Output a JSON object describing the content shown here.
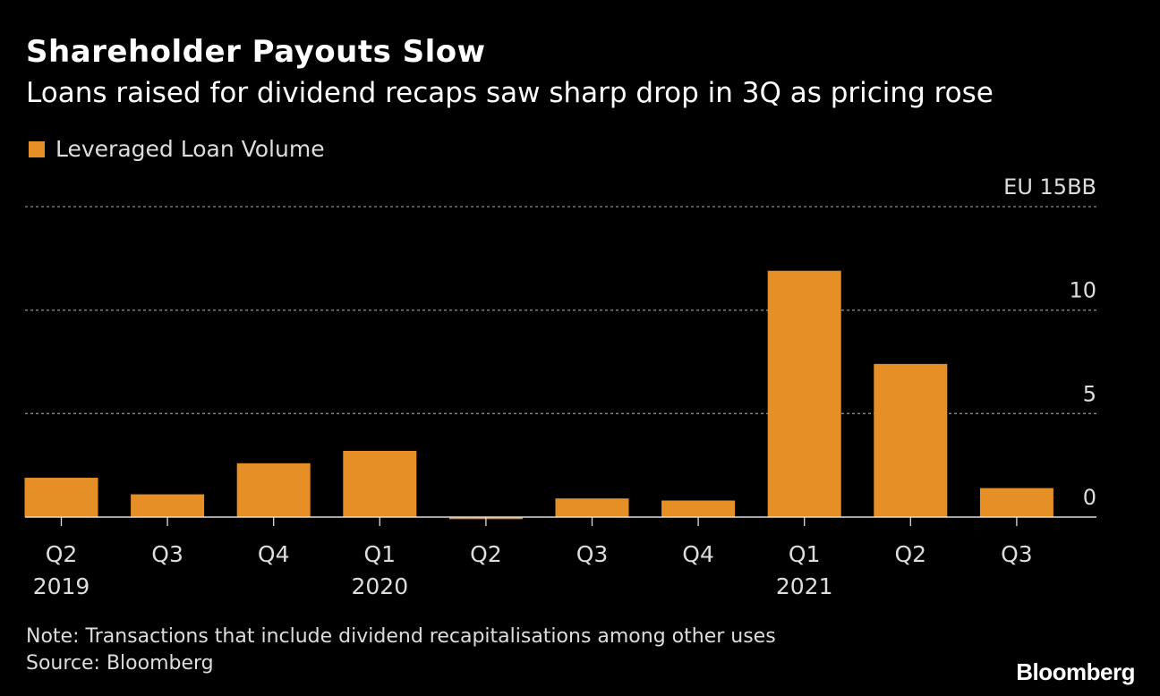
{
  "title": "Shareholder Payouts Slow",
  "subtitle": "Loans raised for dividend recaps saw sharp drop in 3Q as pricing rose",
  "note": "Note: Transactions that include dividend recapitalisations among other uses",
  "source": "Source: Bloomberg",
  "brand": "Bloomberg",
  "colors": {
    "bar": "#e58f26",
    "background": "#000000",
    "grid": "#888888"
  },
  "chart_data": {
    "type": "bar",
    "categories": [
      "Q2",
      "Q3",
      "Q4",
      "Q1",
      "Q2",
      "Q3",
      "Q4",
      "Q1",
      "Q2",
      "Q3"
    ],
    "year_labels": [
      "2019",
      "",
      "",
      "2020",
      "",
      "",
      "",
      "2021",
      "",
      ""
    ],
    "series": [
      {
        "name": "Leveraged Loan Volume",
        "values": [
          1.9,
          1.1,
          2.6,
          3.2,
          -0.1,
          0.9,
          0.8,
          11.9,
          7.4,
          1.4
        ]
      }
    ],
    "y_ticks": [
      "0",
      "5",
      "10",
      "EU 15BB"
    ],
    "y_tick_values": [
      0,
      5,
      10,
      15
    ],
    "ylim": [
      0,
      15
    ],
    "grid": true,
    "legend": "top-left"
  }
}
